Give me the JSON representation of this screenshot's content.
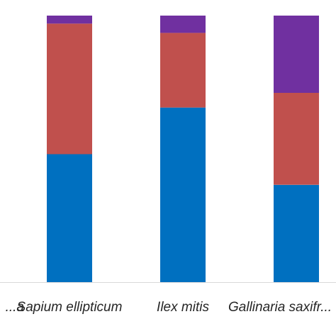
{
  "chart_data": {
    "type": "bar",
    "stacked": true,
    "categories": [
      "...a",
      "Sapium ellipticum",
      "Ilex mitis",
      "Gallinaria saxifr..."
    ],
    "series": [
      {
        "values": [
          null,
          0.48,
          0.655,
          0.365
        ],
        "color": "#0070c0"
      },
      {
        "values": [
          null,
          0.49,
          0.28,
          0.345
        ],
        "color": "#c0504d"
      },
      {
        "values": [
          null,
          0.03,
          0.065,
          0.29
        ],
        "color": "#7030a0"
      }
    ],
    "ylim": [
      0,
      1
    ],
    "grid": false,
    "legend": "none",
    "title": "",
    "xlabel": "",
    "ylabel": ""
  }
}
